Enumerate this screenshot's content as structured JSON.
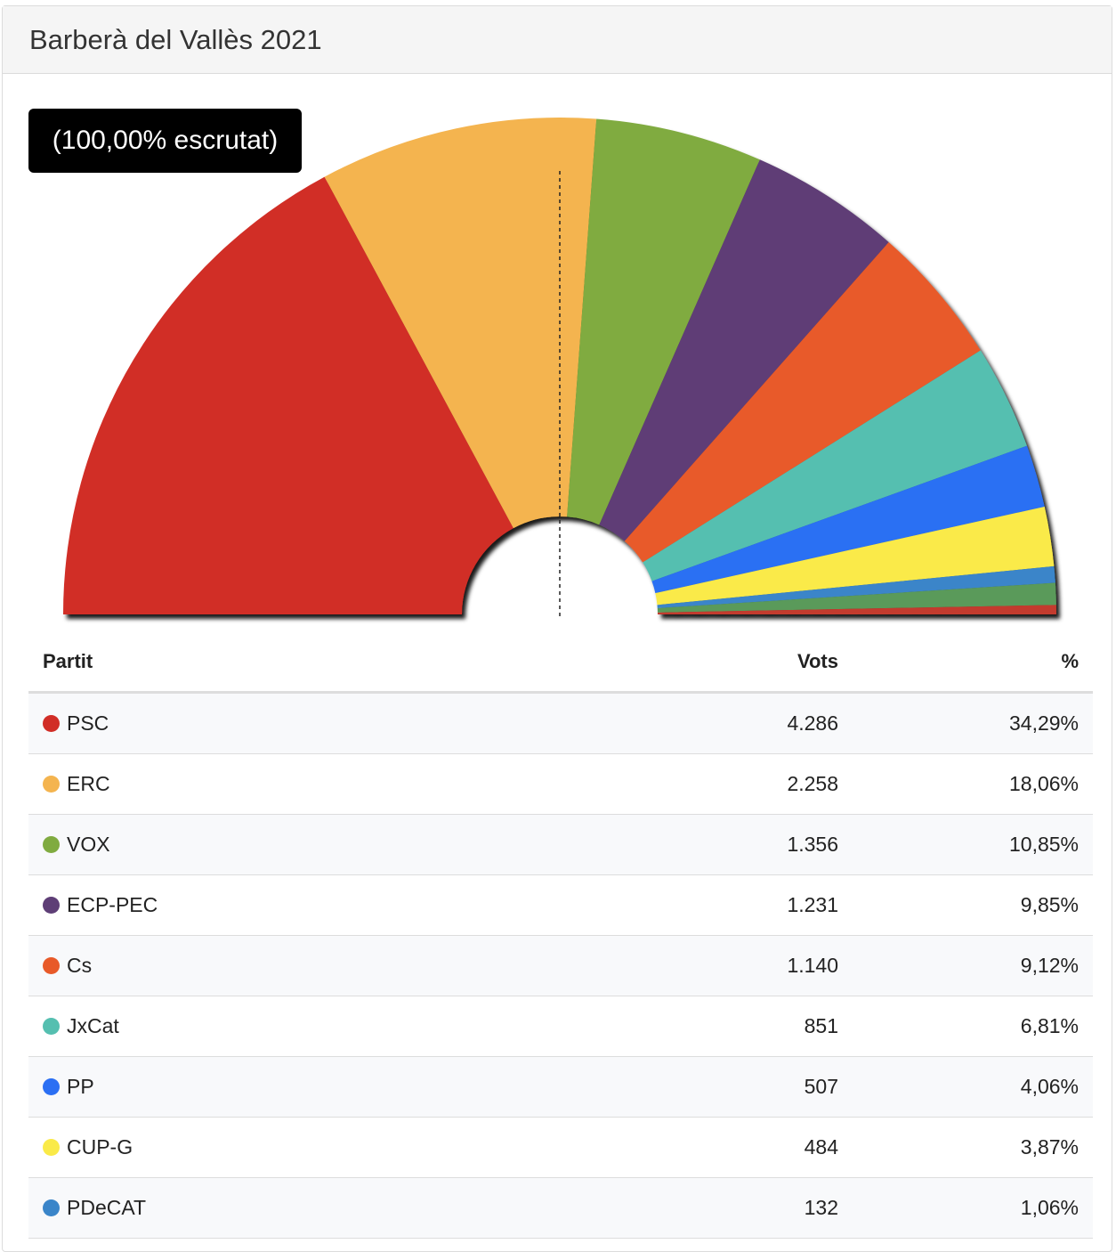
{
  "header": {
    "title": "Barberà del Vallès 2021"
  },
  "badge": {
    "label": "(100,00% escrutat)"
  },
  "table": {
    "headers": {
      "party": "Partit",
      "votes": "Vots",
      "pct": "%"
    }
  },
  "chart_data": {
    "type": "pie",
    "shape": "semicircle-donut",
    "majority_line": "dashed vertical at 50%",
    "parties": [
      {
        "name": "PSC",
        "votes": "4.286",
        "pct": "34,29%",
        "value": 34.29,
        "color": "#d12d26"
      },
      {
        "name": "ERC",
        "votes": "2.258",
        "pct": "18,06%",
        "value": 18.06,
        "color": "#f4b44f"
      },
      {
        "name": "VOX",
        "votes": "1.356",
        "pct": "10,85%",
        "value": 10.85,
        "color": "#80ab40"
      },
      {
        "name": "ECP-PEC",
        "votes": "1.231",
        "pct": "9,85%",
        "value": 9.85,
        "color": "#5e3e76"
      },
      {
        "name": "Cs",
        "votes": "1.140",
        "pct": "9,12%",
        "value": 9.12,
        "color": "#e85a29"
      },
      {
        "name": "JxCat",
        "votes": "851",
        "pct": "6,81%",
        "value": 6.81,
        "color": "#55bfb0"
      },
      {
        "name": "PP",
        "votes": "507",
        "pct": "4,06%",
        "value": 4.06,
        "color": "#2b6ff3"
      },
      {
        "name": "CUP-G",
        "votes": "484",
        "pct": "3,87%",
        "value": 3.87,
        "color": "#faea48"
      },
      {
        "name": "PDeCAT",
        "votes": "132",
        "pct": "1,06%",
        "value": 1.06,
        "color": "#3a85c9"
      }
    ],
    "remainder_colors": [
      "#5a9a5a",
      "#c33a2e"
    ]
  }
}
